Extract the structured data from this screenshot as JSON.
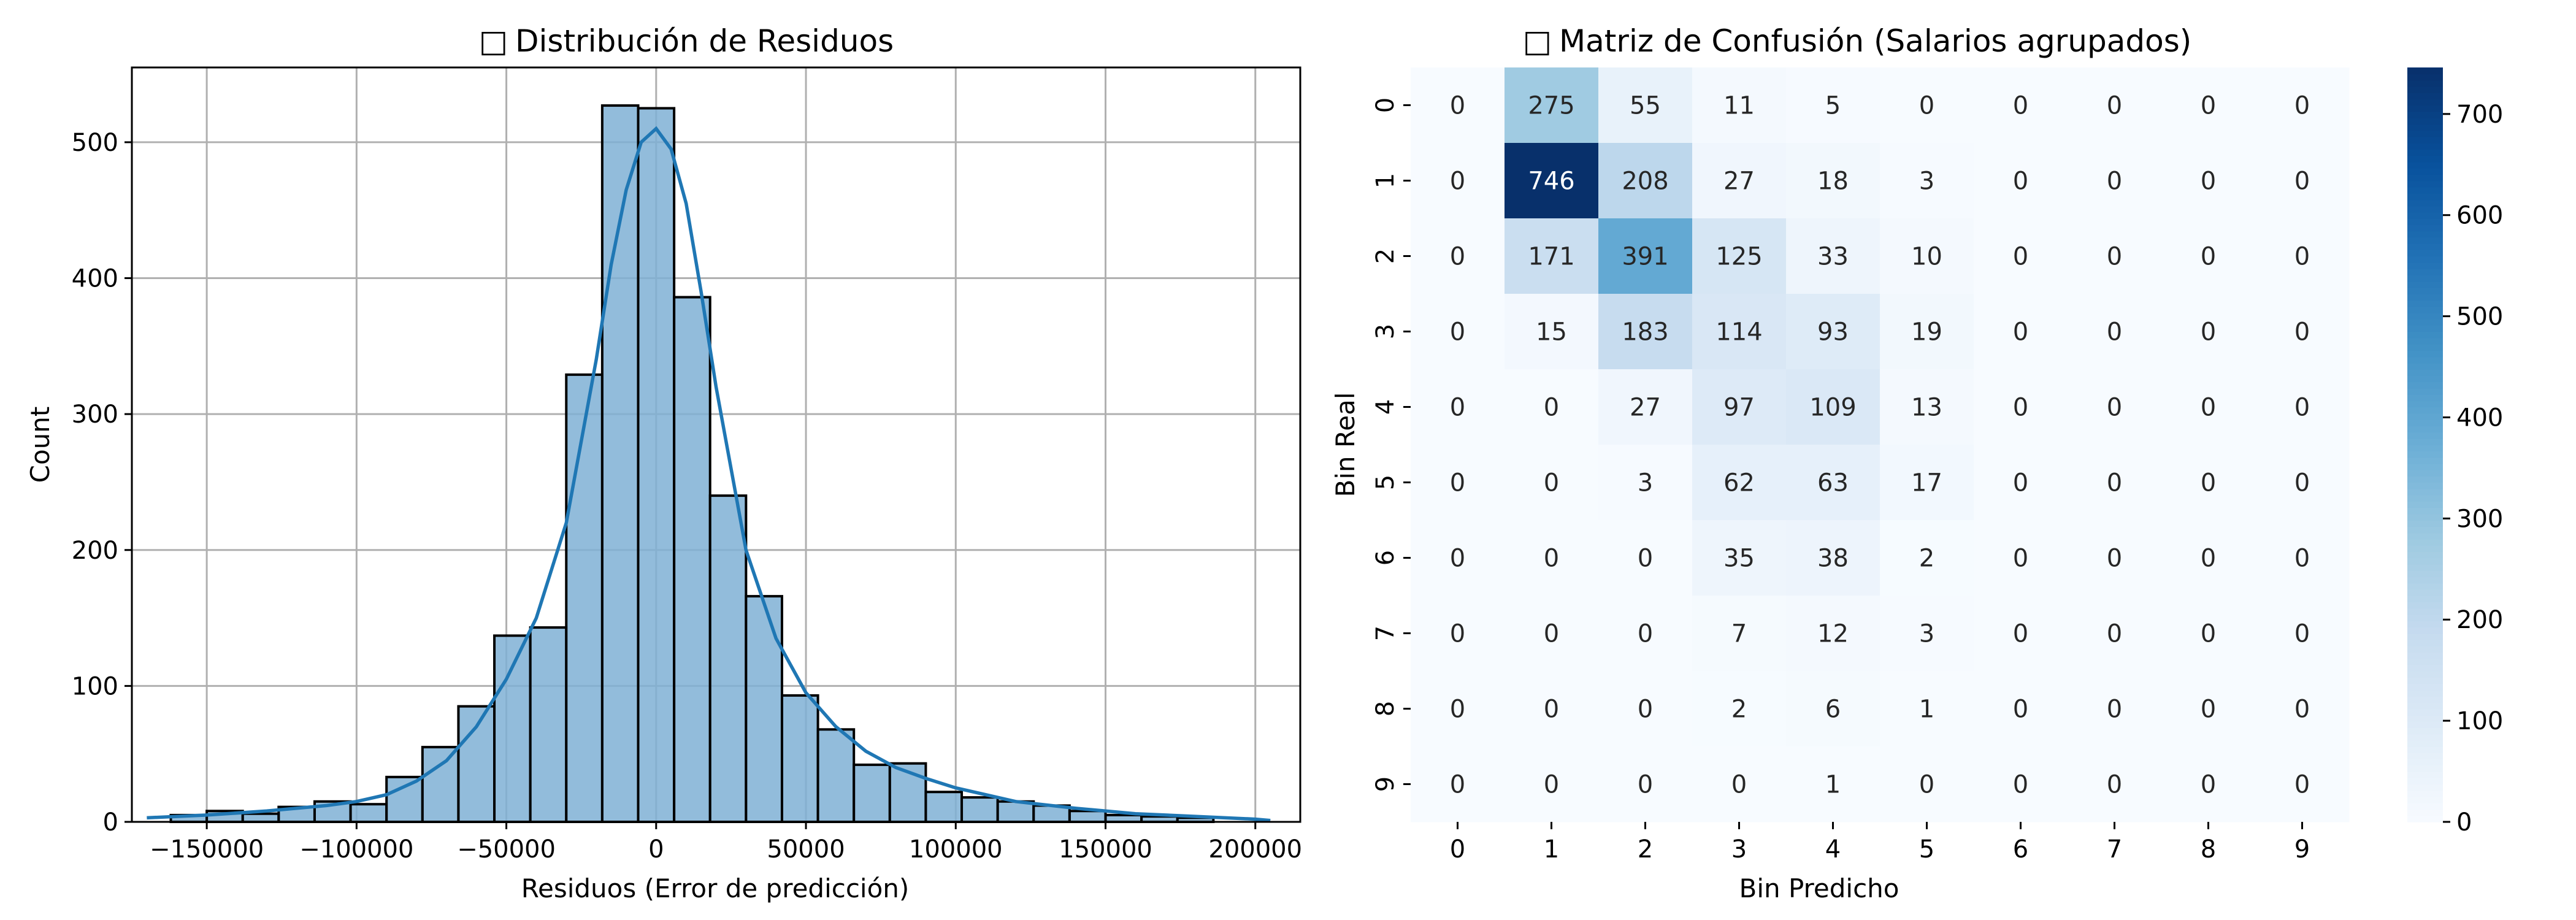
{
  "colors": {
    "hist_fill": "#7fb0d5",
    "hist_edge": "#000000",
    "kde_line": "#1f77b4",
    "grid": "#b0b0b0",
    "heat_low": "#f7fbff",
    "heat_high": "#08306b"
  },
  "icons": {
    "title_glyph": "missing-glyph-box"
  },
  "chart_data": [
    {
      "type": "bar",
      "subtype": "histogram-with-kde",
      "title": "Distribución de Residuos",
      "title_icon": "□",
      "xlabel": "Residuos (Error de predicción)",
      "ylabel": "Count",
      "xlim": [
        -175000,
        215000
      ],
      "ylim": [
        0,
        555
      ],
      "grid": true,
      "xticks": [
        -150000,
        -100000,
        -50000,
        0,
        50000,
        100000,
        150000,
        200000
      ],
      "xtick_labels": [
        "−150000",
        "−100000",
        "−50000",
        "0",
        "50000",
        "100000",
        "150000",
        "200000"
      ],
      "yticks": [
        0,
        100,
        200,
        300,
        400,
        500
      ],
      "ytick_labels": [
        "0",
        "100",
        "200",
        "300",
        "400",
        "500"
      ],
      "bin_start": -162000,
      "bin_width": 12000,
      "counts": [
        5,
        8,
        6,
        11,
        15,
        13,
        33,
        55,
        85,
        137,
        143,
        329,
        527,
        525,
        386,
        240,
        166,
        93,
        68,
        42,
        43,
        22,
        18,
        15,
        12,
        8,
        5,
        4,
        3
      ],
      "kde": {
        "x": [
          -170000,
          -150000,
          -130000,
          -110000,
          -100000,
          -90000,
          -80000,
          -70000,
          -60000,
          -50000,
          -40000,
          -30000,
          -20000,
          -15000,
          -10000,
          -5000,
          0,
          5000,
          10000,
          15000,
          20000,
          30000,
          40000,
          50000,
          60000,
          70000,
          80000,
          90000,
          100000,
          110000,
          120000,
          140000,
          160000,
          180000,
          200000,
          205000
        ],
        "y": [
          3,
          5,
          8,
          12,
          15,
          20,
          30,
          45,
          70,
          105,
          150,
          220,
          340,
          410,
          465,
          500,
          510,
          495,
          455,
          390,
          320,
          200,
          135,
          95,
          70,
          52,
          40,
          32,
          25,
          20,
          15,
          10,
          6,
          4,
          2,
          1
        ]
      }
    },
    {
      "type": "heatmap",
      "title": "Matriz de Confusión (Salarios agrupados)",
      "title_icon": "□",
      "xlabel": "Bin Predicho",
      "ylabel": "Bin Real",
      "x_categories": [
        "0",
        "1",
        "2",
        "3",
        "4",
        "5",
        "6",
        "7",
        "8",
        "9"
      ],
      "y_categories": [
        "0",
        "1",
        "2",
        "3",
        "4",
        "5",
        "6",
        "7",
        "8",
        "9"
      ],
      "values": [
        [
          0,
          275,
          55,
          11,
          5,
          0,
          0,
          0,
          0,
          0
        ],
        [
          0,
          746,
          208,
          27,
          18,
          3,
          0,
          0,
          0,
          0
        ],
        [
          0,
          171,
          391,
          125,
          33,
          10,
          0,
          0,
          0,
          0
        ],
        [
          0,
          15,
          183,
          114,
          93,
          19,
          0,
          0,
          0,
          0
        ],
        [
          0,
          0,
          27,
          97,
          109,
          13,
          0,
          0,
          0,
          0
        ],
        [
          0,
          0,
          3,
          62,
          63,
          17,
          0,
          0,
          0,
          0
        ],
        [
          0,
          0,
          0,
          35,
          38,
          2,
          0,
          0,
          0,
          0
        ],
        [
          0,
          0,
          0,
          7,
          12,
          3,
          0,
          0,
          0,
          0
        ],
        [
          0,
          0,
          0,
          2,
          6,
          1,
          0,
          0,
          0,
          0
        ],
        [
          0,
          0,
          0,
          0,
          1,
          0,
          0,
          0,
          0,
          0
        ]
      ],
      "colormap": "Blues",
      "vmin": 0,
      "vmax": 746,
      "colorbar_ticks": [
        0,
        100,
        200,
        300,
        400,
        500,
        600,
        700
      ],
      "colorbar_tick_labels": [
        "0",
        "100",
        "200",
        "300",
        "400",
        "500",
        "600",
        "700"
      ]
    }
  ]
}
